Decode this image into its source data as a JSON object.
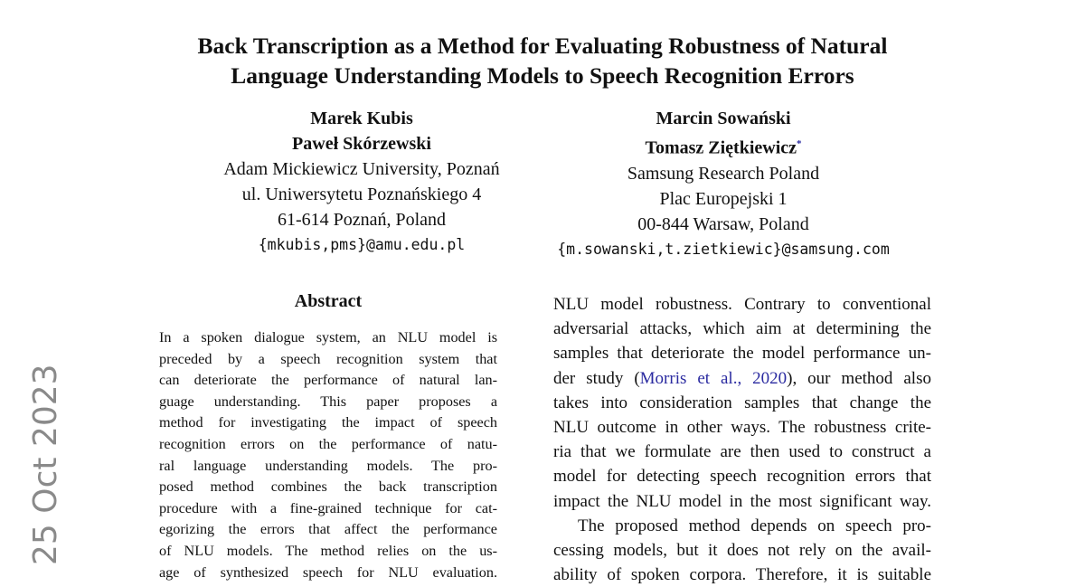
{
  "title": [
    "Back Transcription as a Method for Evaluating Robustness of Natural",
    "Language Understanding Models to Speech Recognition Errors"
  ],
  "authors_left": {
    "names": [
      "Marek Kubis",
      "Paweł Skórzewski"
    ],
    "affiliation": [
      "Adam Mickiewicz University, Poznań",
      "ul. Uniwersytetu Poznańskiego 4",
      "61-614 Poznań, Poland"
    ],
    "email": "{mkubis,pms}@amu.edu.pl"
  },
  "authors_right": {
    "names": [
      "Marcin Sowański",
      "Tomasz Ziętkiewicz"
    ],
    "footnote_mark": "*",
    "affiliation": [
      "Samsung Research Poland",
      "Plac Europejski 1",
      "00-844 Warsaw, Poland"
    ],
    "email": "{m.sowanski,t.zietkiewic}@samsung.com"
  },
  "arxiv_date": "25 Oct 2023",
  "abstract": {
    "heading": "Abstract",
    "lines": [
      "In a spoken dialogue system, an NLU model is",
      "preceded by a speech recognition system that",
      "can deteriorate the performance of natural lan-",
      "guage understanding. This paper proposes a",
      "method for investigating the impact of speech",
      "recognition errors on the performance of natu-",
      "ral language understanding models. The pro-",
      "posed method combines the back transcription",
      "procedure with a fine-grained technique for cat-",
      "egorizing the errors that affect the performance",
      "of NLU models. The method relies on the us-",
      "age of synthesized speech for NLU evaluation."
    ]
  },
  "right_column": {
    "lines_a": [
      "NLU model robustness. Contrary to conventional",
      "adversarial attacks, which aim at determining the",
      "samples that deteriorate the model performance un-"
    ],
    "cite_line": {
      "before": "der study (",
      "cite": "Morris et al., 2020",
      "after": "), our method also"
    },
    "lines_b": [
      "takes into consideration samples that change the",
      "NLU outcome in other ways. The robustness crite-",
      "ria that we formulate are then used to construct a",
      "model for detecting speech recognition errors that"
    ],
    "para_end": "impact the NLU model in the most significant way.",
    "lines_c": [
      "The proposed method depends on speech pro-",
      "cessing models, but it does not rely on the avail-",
      "ability of spoken corpora. Therefore, it is suitable"
    ]
  },
  "colors": {
    "link": "#2a2aa0",
    "stamp": "#8a8a8a"
  }
}
